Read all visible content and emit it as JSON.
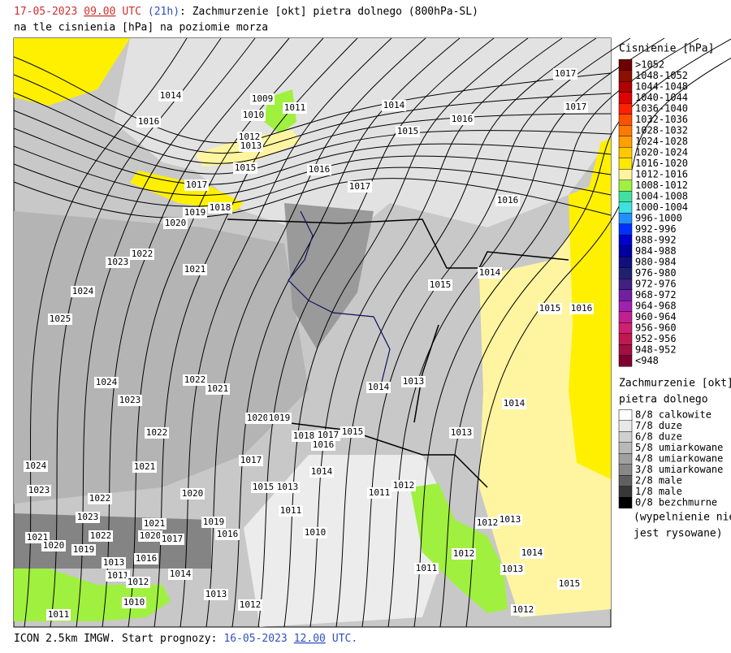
{
  "header": {
    "parts": [
      "17-05-2023",
      "09.00",
      "UTC",
      "(21h)",
      ": Zachmurzenie [okt] pietra dolnego (800hPa-SL)"
    ],
    "colors": [
      "#d03030",
      "#d03030",
      "#d03030",
      "#3050c0",
      "#000000"
    ],
    "line2": "na tle cisnienia [hPa] na poziomie morza"
  },
  "footer": {
    "parts": [
      "ICON 2.5km IMGW. Start prognozy:",
      "16-05-2023",
      "12.00",
      "UTC."
    ],
    "colors": [
      "#000000",
      "#3050c0",
      "#3050c0",
      "#3050c0"
    ]
  },
  "pressure_legend": {
    "title": "Cisnienie [hPa]",
    "items": [
      ">1052",
      "1048-1052",
      "1044-1048",
      "1040-1044",
      "1036-1040",
      "1032-1036",
      "1028-1032",
      "1024-1028",
      "1020-1024",
      "1016-1020",
      "1012-1016",
      "1008-1012",
      "1004-1008",
      "1000-1004",
      "996-1000",
      "992-996",
      "988-992",
      "984-988",
      "980-984",
      "976-980",
      "972-976",
      "968-972",
      "964-968",
      "960-964",
      "956-960",
      "952-956",
      "948-952",
      "<948"
    ],
    "colors": [
      "#6e0000",
      "#8c1000",
      "#b00000",
      "#e00000",
      "#ff2000",
      "#ff5000",
      "#ff7a00",
      "#ffa000",
      "#ffc800",
      "#ffe800",
      "#fff5a0",
      "#a0f040",
      "#40e0a0",
      "#40e0e0",
      "#2090ff",
      "#0030ff",
      "#0000d0",
      "#0000a0",
      "#101080",
      "#202070",
      "#402080",
      "#7020a0",
      "#a020b0",
      "#c02090",
      "#d02070",
      "#c01850",
      "#a01040",
      "#800030"
    ]
  },
  "cloud_legend": {
    "title": "Zachmurzenie [okt]",
    "subtitle": "pietra dolnego",
    "items": [
      "8/8 calkowite",
      "7/8 duze",
      "6/8 duze",
      "5/8 umiarkowane",
      "4/8 umiarkowane",
      "3/8 umiarkowane",
      "2/8 male",
      "1/8 male",
      "0/8 bezchmurne"
    ],
    "colors": [
      "#ffffff",
      "#e8e8e8",
      "#d0d0d0",
      "#b8b8b8",
      "#a0a0a0",
      "#888888",
      "#606060",
      "#383838",
      "#000000"
    ],
    "note": [
      "(wypelnienie nie",
      "jest rysowane)"
    ]
  },
  "map": {
    "isobar_labels": [
      "1009",
      "1011",
      "1010",
      "1012",
      "1013",
      "1014",
      "1016",
      "1015",
      "1016",
      "1017",
      "1017",
      "1018",
      "1019",
      "1020",
      "1014",
      "1015",
      "1016",
      "1017",
      "1017",
      "1016",
      "1023",
      "1022",
      "1021",
      "1024",
      "1025",
      "1015",
      "1014",
      "1015",
      "1016",
      "1013",
      "1014",
      "1014",
      "1013",
      "1022",
      "1021",
      "1024",
      "1023",
      "1022",
      "1020",
      "1019",
      "1018",
      "1017",
      "1015",
      "1016",
      "1017",
      "1014",
      "1021",
      "1024",
      "1023",
      "1022",
      "1020",
      "1015",
      "1013",
      "1011",
      "1012",
      "1011",
      "1019",
      "1016",
      "1010",
      "1023",
      "1021",
      "1022",
      "1020",
      "1017",
      "1019",
      "1013",
      "1016",
      "1011",
      "1012",
      "1014",
      "1013",
      "1012",
      "1010",
      "1011",
      "1012",
      "1012",
      "1013",
      "1014",
      "1013",
      "1011",
      "1015",
      "1012",
      "1021",
      "1020"
    ]
  }
}
